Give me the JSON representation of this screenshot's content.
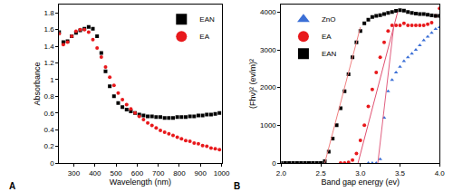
{
  "chart_data": [
    {
      "type": "scatter",
      "title": "A",
      "x_label": "Wavelength (nm)",
      "y_label": "Absorbance",
      "xlim": [
        230,
        1000
      ],
      "xticks": [
        300,
        400,
        500,
        600,
        700,
        800,
        900,
        1000
      ],
      "ylim": [
        0,
        1.9
      ],
      "yticks": [
        0,
        0.2,
        0.4,
        0.6,
        0.8,
        1,
        1.2,
        1.4,
        1.6,
        1.8
      ],
      "grid": false,
      "legend": "upper right",
      "series": [
        {
          "name": "EAN",
          "color": "#000000",
          "marker": "square",
          "x": [
            230,
            250,
            270,
            290,
            310,
            330,
            350,
            370,
            390,
            410,
            430,
            450,
            470,
            490,
            510,
            530,
            550,
            570,
            590,
            610,
            630,
            650,
            670,
            690,
            710,
            730,
            750,
            770,
            790,
            810,
            830,
            850,
            870,
            890,
            910,
            930,
            950,
            970,
            990
          ],
          "values": [
            1.57,
            1.45,
            1.46,
            1.52,
            1.56,
            1.59,
            1.61,
            1.63,
            1.61,
            1.52,
            1.32,
            1.1,
            0.92,
            0.8,
            0.72,
            0.67,
            0.64,
            0.62,
            0.6,
            0.58,
            0.57,
            0.56,
            0.56,
            0.55,
            0.55,
            0.54,
            0.54,
            0.54,
            0.55,
            0.55,
            0.55,
            0.56,
            0.56,
            0.57,
            0.57,
            0.58,
            0.58,
            0.59,
            0.6
          ]
        },
        {
          "name": "EA",
          "color": "#e8191c",
          "marker": "circle",
          "x": [
            230,
            250,
            270,
            290,
            310,
            330,
            350,
            370,
            390,
            410,
            430,
            450,
            470,
            490,
            510,
            530,
            550,
            570,
            590,
            610,
            630,
            650,
            670,
            690,
            710,
            730,
            750,
            770,
            790,
            810,
            830,
            850,
            870,
            890,
            910,
            930,
            950,
            970,
            990
          ],
          "values": [
            1.55,
            1.42,
            1.45,
            1.52,
            1.58,
            1.6,
            1.6,
            1.57,
            1.48,
            1.38,
            1.27,
            1.15,
            1.03,
            0.93,
            0.84,
            0.76,
            0.7,
            0.65,
            0.6,
            0.56,
            0.52,
            0.48,
            0.45,
            0.42,
            0.39,
            0.37,
            0.35,
            0.33,
            0.31,
            0.29,
            0.27,
            0.26,
            0.24,
            0.23,
            0.21,
            0.2,
            0.18,
            0.17,
            0.16
          ]
        }
      ]
    },
    {
      "type": "scatter",
      "title": "B",
      "x_label": "Band gap energy (ev)",
      "y_label": "(Fhν)² (ev/m)²",
      "xlim": [
        2,
        4
      ],
      "xticks": [
        {
          "value": 2,
          "label": "2.0"
        },
        {
          "value": 2.5,
          "label": "2.5"
        },
        {
          "value": 3,
          "label": "3.0"
        },
        {
          "value": 3.5,
          "label": "3.5"
        },
        {
          "value": 4,
          "label": "4.0"
        }
      ],
      "ylim": [
        0,
        4200
      ],
      "yticks": [
        0,
        1000,
        2000,
        3000,
        4000
      ],
      "grid": false,
      "legend": "upper left",
      "series": [
        {
          "name": "ZnO",
          "color": "#3b6fd6",
          "marker": "triangle",
          "x": [
            3.1,
            3.15,
            3.2,
            3.25,
            3.3,
            3.35,
            3.4,
            3.45,
            3.5,
            3.55,
            3.6,
            3.65,
            3.7,
            3.75,
            3.8,
            3.85,
            3.9,
            3.95,
            4.0
          ],
          "values": [
            0,
            0,
            0,
            100,
            1200,
            1900,
            2200,
            2400,
            2550,
            2700,
            2800,
            2900,
            3000,
            3120,
            3250,
            3350,
            3450,
            3550,
            3600
          ]
        },
        {
          "name": "EA",
          "color": "#e8191c",
          "marker": "circle",
          "x": [
            2.75,
            2.8,
            2.85,
            2.9,
            2.95,
            3.0,
            3.05,
            3.1,
            3.15,
            3.2,
            3.25,
            3.3,
            3.35,
            3.4,
            3.45,
            3.5,
            3.55,
            3.6,
            3.65,
            3.7,
            3.75,
            3.8,
            3.85,
            3.9,
            3.95,
            4.0
          ],
          "values": [
            0,
            0,
            20,
            80,
            250,
            600,
            1000,
            1500,
            1950,
            2400,
            2800,
            3200,
            3500,
            3650,
            3650,
            3650,
            3700,
            3650,
            3650,
            3650,
            3650,
            3650,
            3680,
            3720,
            3900,
            4100
          ]
        },
        {
          "name": "EAN",
          "color": "#000000",
          "marker": "square",
          "x": [
            2.0,
            2.05,
            2.1,
            2.15,
            2.2,
            2.25,
            2.3,
            2.35,
            2.4,
            2.45,
            2.5,
            2.55,
            2.6,
            2.65,
            2.7,
            2.75,
            2.8,
            2.85,
            2.9,
            2.95,
            3.0,
            3.05,
            3.1,
            3.15,
            3.2,
            3.25,
            3.3,
            3.35,
            3.4,
            3.45,
            3.5,
            3.55,
            3.6,
            3.65,
            3.7,
            3.75,
            3.8,
            3.85,
            3.9,
            3.95,
            4.0
          ],
          "values": [
            0,
            0,
            0,
            0,
            0,
            0,
            0,
            0,
            0,
            0,
            0,
            50,
            300,
            650,
            1000,
            1450,
            1900,
            2350,
            2800,
            3200,
            3500,
            3700,
            3800,
            3870,
            3900,
            3920,
            3950,
            3980,
            4000,
            4030,
            4050,
            4040,
            4000,
            3980,
            3960,
            3950,
            3950,
            3930,
            3910,
            3900,
            3900
          ]
        },
        {
          "type": "line",
          "color": "#f08080",
          "line_style": "solid",
          "x": [
            2.55,
            3.0
          ],
          "values": [
            0,
            3600
          ]
        },
        {
          "type": "line",
          "color": "#e05070",
          "line_style": "solid",
          "x": [
            2.97,
            3.47
          ],
          "values": [
            0,
            4000
          ]
        },
        {
          "type": "line",
          "color": "#e06080",
          "line_style": "solid",
          "x": [
            3.22,
            3.42
          ],
          "values": [
            0,
            3600
          ]
        }
      ]
    }
  ]
}
